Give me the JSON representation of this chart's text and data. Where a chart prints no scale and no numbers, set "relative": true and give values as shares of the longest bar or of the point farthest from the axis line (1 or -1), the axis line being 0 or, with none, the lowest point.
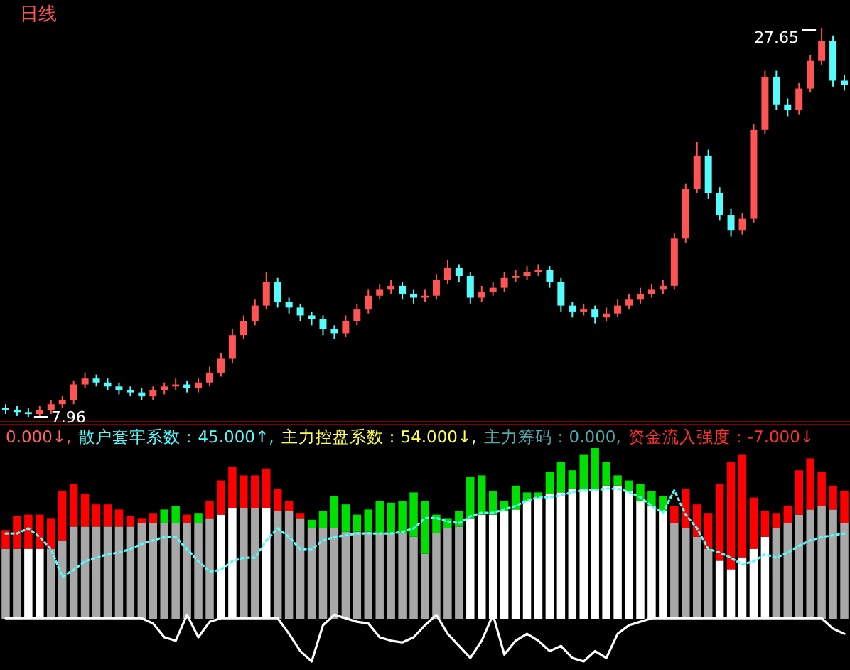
{
  "chart_data": [
    {
      "type": "candlestick",
      "title": "日线",
      "categories": [
        null,
        null,
        null,
        null,
        null,
        null,
        null,
        null,
        null,
        null,
        null,
        null,
        null,
        null,
        null,
        null,
        null,
        null,
        null,
        null,
        null,
        null,
        null,
        null,
        null,
        null,
        null,
        null,
        null,
        null,
        null,
        null,
        null,
        null,
        null,
        null,
        null,
        null,
        null,
        null,
        null,
        null,
        null,
        null,
        null,
        null,
        null,
        null,
        null,
        null,
        null,
        null,
        null,
        null,
        null,
        null,
        null,
        null,
        null,
        null,
        null,
        null,
        null,
        null,
        null,
        null,
        null,
        null,
        null,
        null,
        null,
        null,
        null,
        null,
        null
      ],
      "ohlc": [
        [
          8.4,
          8.6,
          8.1,
          8.3
        ],
        [
          8.3,
          8.5,
          8.0,
          8.2
        ],
        [
          8.2,
          8.4,
          7.96,
          8.1
        ],
        [
          8.1,
          8.5,
          8.0,
          8.3
        ],
        [
          8.3,
          8.8,
          8.1,
          8.6
        ],
        [
          8.6,
          9.0,
          8.4,
          8.8
        ],
        [
          8.8,
          9.8,
          8.6,
          9.6
        ],
        [
          9.6,
          10.2,
          9.4,
          9.9
        ],
        [
          9.9,
          10.1,
          9.5,
          9.7
        ],
        [
          9.7,
          9.9,
          9.3,
          9.5
        ],
        [
          9.5,
          9.7,
          9.1,
          9.3
        ],
        [
          9.3,
          9.5,
          9.0,
          9.2
        ],
        [
          9.2,
          9.4,
          8.8,
          9.0
        ],
        [
          9.0,
          9.5,
          8.8,
          9.3
        ],
        [
          9.3,
          9.7,
          9.1,
          9.5
        ],
        [
          9.5,
          9.9,
          9.3,
          9.6
        ],
        [
          9.6,
          9.8,
          9.2,
          9.4
        ],
        [
          9.4,
          9.9,
          9.2,
          9.7
        ],
        [
          9.7,
          10.5,
          9.5,
          10.2
        ],
        [
          10.2,
          11.2,
          10.0,
          10.9
        ],
        [
          10.9,
          12.4,
          10.7,
          12.1
        ],
        [
          12.1,
          13.1,
          11.9,
          12.8
        ],
        [
          12.8,
          13.9,
          12.6,
          13.6
        ],
        [
          13.6,
          15.3,
          13.4,
          14.8
        ],
        [
          14.8,
          15.0,
          13.5,
          13.8
        ],
        [
          13.8,
          14.0,
          13.2,
          13.5
        ],
        [
          13.5,
          13.7,
          12.8,
          13.1
        ],
        [
          13.1,
          13.3,
          12.6,
          12.9
        ],
        [
          12.9,
          13.1,
          12.1,
          12.4
        ],
        [
          12.4,
          12.6,
          11.9,
          12.2
        ],
        [
          12.2,
          13.1,
          12.0,
          12.8
        ],
        [
          12.8,
          13.7,
          12.6,
          13.4
        ],
        [
          13.4,
          14.4,
          13.2,
          14.1
        ],
        [
          14.1,
          14.7,
          13.9,
          14.4
        ],
        [
          14.4,
          14.9,
          14.2,
          14.6
        ],
        [
          14.6,
          14.8,
          13.9,
          14.2
        ],
        [
          14.2,
          14.4,
          13.7,
          14.0
        ],
        [
          14.0,
          14.4,
          13.8,
          14.1
        ],
        [
          14.1,
          15.2,
          13.9,
          14.9
        ],
        [
          14.9,
          15.9,
          14.7,
          15.5
        ],
        [
          15.5,
          15.7,
          14.8,
          15.1
        ],
        [
          15.1,
          15.3,
          13.7,
          14.0
        ],
        [
          14.0,
          14.6,
          13.8,
          14.3
        ],
        [
          14.3,
          14.8,
          14.1,
          14.5
        ],
        [
          14.5,
          15.3,
          14.3,
          15.0
        ],
        [
          15.0,
          15.4,
          14.8,
          15.1
        ],
        [
          15.1,
          15.6,
          14.9,
          15.3
        ],
        [
          15.3,
          15.7,
          15.1,
          15.4
        ],
        [
          15.4,
          15.6,
          14.5,
          14.8
        ],
        [
          14.8,
          15.0,
          13.3,
          13.6
        ],
        [
          13.6,
          13.8,
          13.0,
          13.3
        ],
        [
          13.3,
          13.7,
          13.1,
          13.4
        ],
        [
          13.4,
          13.6,
          12.7,
          13.0
        ],
        [
          13.0,
          13.5,
          12.8,
          13.2
        ],
        [
          13.2,
          13.9,
          13.0,
          13.6
        ],
        [
          13.6,
          14.2,
          13.4,
          13.9
        ],
        [
          13.9,
          14.5,
          13.7,
          14.2
        ],
        [
          14.2,
          14.7,
          14.0,
          14.4
        ],
        [
          14.4,
          14.9,
          14.2,
          14.6
        ],
        [
          14.6,
          17.3,
          14.4,
          17.0
        ],
        [
          17.0,
          19.8,
          16.8,
          19.5
        ],
        [
          19.5,
          21.9,
          19.3,
          21.2
        ],
        [
          21.2,
          21.5,
          19.0,
          19.3
        ],
        [
          19.3,
          19.6,
          17.9,
          18.2
        ],
        [
          18.2,
          18.5,
          17.1,
          17.4
        ],
        [
          17.4,
          18.3,
          17.2,
          18.0
        ],
        [
          18.0,
          22.8,
          17.8,
          22.5
        ],
        [
          22.5,
          25.5,
          22.3,
          25.2
        ],
        [
          25.2,
          25.5,
          23.5,
          23.8
        ],
        [
          23.8,
          24.1,
          23.2,
          23.5
        ],
        [
          23.5,
          24.9,
          23.3,
          24.6
        ],
        [
          24.6,
          26.3,
          24.4,
          26.0
        ],
        [
          26.0,
          27.65,
          25.8,
          27.0
        ],
        [
          27.0,
          27.3,
          24.7,
          25.0
        ],
        [
          25.0,
          25.3,
          24.5,
          24.8
        ]
      ],
      "colors": [
        "#54fcfc",
        "#54fcfc",
        "#54fcfc",
        "#ff5454",
        "#ff5454",
        "#ff5454",
        "#ff5454",
        "#ff5454",
        "#54fcfc",
        "#54fcfc",
        "#54fcfc",
        "#54fcfc",
        "#54fcfc",
        "#ff5454",
        "#ff5454",
        "#ff5454",
        "#54fcfc",
        "#ff5454",
        "#ff5454",
        "#ff5454",
        "#ff5454",
        "#ff5454",
        "#ff5454",
        "#ff5454",
        "#54fcfc",
        "#54fcfc",
        "#54fcfc",
        "#54fcfc",
        "#54fcfc",
        "#54fcfc",
        "#ff5454",
        "#ff5454",
        "#ff5454",
        "#ff5454",
        "#ff5454",
        "#54fcfc",
        "#54fcfc",
        "#ff5454",
        "#ff5454",
        "#ff5454",
        "#54fcfc",
        "#54fcfc",
        "#ff5454",
        "#ff5454",
        "#ff5454",
        "#ff5454",
        "#ff5454",
        "#ff5454",
        "#54fcfc",
        "#54fcfc",
        "#54fcfc",
        "#ff5454",
        "#54fcfc",
        "#ff5454",
        "#ff5454",
        "#ff5454",
        "#ff5454",
        "#ff5454",
        "#ff5454",
        "#ff5454",
        "#ff5454",
        "#ff5454",
        "#54fcfc",
        "#54fcfc",
        "#54fcfc",
        "#ff5454",
        "#ff5454",
        "#ff5454",
        "#54fcfc",
        "#54fcfc",
        "#ff5454",
        "#ff5454",
        "#ff5454",
        "#54fcfc",
        "#54fcfc"
      ],
      "annotations": [
        "7.96",
        "27.65"
      ]
    },
    {
      "type": "bar",
      "relative": true,
      "stacked": true,
      "categories": [
        null,
        null,
        null,
        null,
        null,
        null,
        null,
        null,
        null,
        null,
        null,
        null,
        null,
        null,
        null,
        null,
        null,
        null,
        null,
        null,
        null,
        null,
        null,
        null,
        null,
        null,
        null,
        null,
        null,
        null,
        null,
        null,
        null,
        null,
        null,
        null,
        null,
        null,
        null,
        null,
        null,
        null,
        null,
        null,
        null,
        null,
        null,
        null,
        null,
        null,
        null,
        null,
        null,
        null,
        null,
        null,
        null,
        null,
        null,
        null,
        null,
        null,
        null,
        null,
        null,
        null,
        null,
        null,
        null,
        null,
        null,
        null,
        null,
        null,
        null
      ],
      "annotations": [
        "0.000↓,",
        "散户套牢系数：45.000↑,",
        "主力控盘系数：54.000↓,",
        "主力筹码：0.000,",
        "资金流入强度：-7.000↓"
      ],
      "series": [
        {
          "values": [
            0.41,
            0.41,
            0.41,
            0.41,
            0.41,
            0.46,
            0.54,
            0.54,
            0.54,
            0.54,
            0.54,
            0.54,
            0.56,
            0.56,
            0.56,
            0.56,
            0.56,
            0.56,
            0.59,
            0.61,
            0.65,
            0.65,
            0.65,
            0.65,
            0.63,
            0.63,
            0.59,
            0.53,
            0.53,
            0.53,
            0.51,
            0.51,
            0.51,
            0.5,
            0.5,
            0.5,
            0.48,
            0.38,
            0.5,
            0.53,
            0.54,
            0.59,
            0.61,
            0.61,
            0.63,
            0.64,
            0.69,
            0.71,
            0.73,
            0.74,
            0.76,
            0.76,
            0.76,
            0.78,
            0.78,
            0.75,
            0.69,
            0.66,
            0.63,
            0.56,
            0.53,
            0.48,
            0.41,
            0.34,
            0.29,
            0.36,
            0.41,
            0.48,
            0.53,
            0.56,
            0.61,
            0.64,
            0.66,
            0.64,
            0.56
          ],
          "colors": [
            "#a8a8a8",
            "#a8a8a8",
            "#ffffff",
            "#ffffff",
            "#a8a8a8",
            "#a8a8a8",
            "#a8a8a8",
            "#a8a8a8",
            "#a8a8a8",
            "#a8a8a8",
            "#a8a8a8",
            "#a8a8a8",
            "#a8a8a8",
            "#a8a8a8",
            "#a8a8a8",
            "#a8a8a8",
            "#a8a8a8",
            "#a8a8a8",
            "#a8a8a8",
            "#ffffff",
            "#ffffff",
            "#a8a8a8",
            "#a8a8a8",
            "#ffffff",
            "#a8a8a8",
            "#a8a8a8",
            "#a8a8a8",
            "#a8a8a8",
            "#a8a8a8",
            "#a8a8a8",
            "#a8a8a8",
            "#a8a8a8",
            "#a8a8a8",
            "#a8a8a8",
            "#a8a8a8",
            "#a8a8a8",
            "#a8a8a8",
            "#a8a8a8",
            "#a8a8a8",
            "#a8a8a8",
            "#a8a8a8",
            "#ffffff",
            "#ffffff",
            "#ffffff",
            "#ffffff",
            "#ffffff",
            "#ffffff",
            "#ffffff",
            "#ffffff",
            "#ffffff",
            "#ffffff",
            "#ffffff",
            "#ffffff",
            "#ffffff",
            "#ffffff",
            "#ffffff",
            "#ffffff",
            "#ffffff",
            "#ffffff",
            "#a8a8a8",
            "#a8a8a8",
            "#a8a8a8",
            "#a8a8a8",
            "#ffffff",
            "#ffffff",
            "#ffffff",
            "#ffffff",
            "#ffffff",
            "#a8a8a8",
            "#a8a8a8",
            "#a8a8a8",
            "#a8a8a8",
            "#a8a8a8",
            "#a8a8a8",
            "#a8a8a8"
          ]
        },
        {
          "values": [
            0.11,
            0.19,
            0.2,
            0.2,
            0.18,
            0.29,
            0.25,
            0.19,
            0.13,
            0.13,
            0.1,
            0.06,
            0.03,
            0.06,
            0.08,
            0.1,
            0.05,
            0.06,
            0.1,
            0.2,
            0.24,
            0.19,
            0.19,
            0.23,
            0.13,
            0.06,
            0.03,
            0.05,
            0.1,
            0.19,
            0.16,
            0.1,
            0.13,
            0.19,
            0.18,
            0.19,
            0.26,
            0.31,
            0.11,
            0.06,
            0.09,
            0.24,
            0.23,
            0.14,
            0.06,
            0.14,
            0.05,
            0.03,
            0.13,
            0.18,
            0.11,
            0.2,
            0.24,
            0.14,
            0.06,
            0.06,
            0.1,
            0.09,
            0.09,
            0.1,
            0.23,
            0.19,
            0.21,
            0.45,
            0.63,
            0.6,
            0.3,
            0.15,
            0.09,
            0.1,
            0.26,
            0.3,
            0.2,
            0.14,
            0.19
          ],
          "colors": [
            "#ff0000",
            "#ff0000",
            "#ff0000",
            "#ff0000",
            "#ff0000",
            "#ff0000",
            "#ff0000",
            "#ff0000",
            "#ff0000",
            "#ff0000",
            "#ff0000",
            "#ff0000",
            "#ff0000",
            "#ff0000",
            "#00e000",
            "#00e000",
            "#ff0000",
            "#00e000",
            "#ff0000",
            "#ff0000",
            "#ff0000",
            "#ff0000",
            "#ff0000",
            "#ff0000",
            "#ff0000",
            "#ff0000",
            "#ff0000",
            "#00e000",
            "#00e000",
            "#00e000",
            "#00e000",
            "#00e000",
            "#00e000",
            "#00e000",
            "#00e000",
            "#00e000",
            "#00e000",
            "#00e000",
            "#00e000",
            "#00e000",
            "#00e000",
            "#00e000",
            "#00e000",
            "#00e000",
            "#00e000",
            "#00e000",
            "#00e000",
            "#00e000",
            "#00e000",
            "#00e000",
            "#00e000",
            "#00e000",
            "#00e000",
            "#00e000",
            "#00e000",
            "#00e000",
            "#00e000",
            "#00e000",
            "#00e000",
            "#ff0000",
            "#ff0000",
            "#ff0000",
            "#ff0000",
            "#ff0000",
            "#ff0000",
            "#ff0000",
            "#ff0000",
            "#ff0000",
            "#ff0000",
            "#ff0000",
            "#ff0000",
            "#ff0000",
            "#ff0000",
            "#ff0000",
            "#ff0000"
          ]
        }
      ]
    },
    {
      "type": "line",
      "relative": true,
      "categories": [
        null,
        null,
        null,
        null,
        null,
        null,
        null,
        null,
        null,
        null,
        null,
        null,
        null,
        null,
        null,
        null,
        null,
        null,
        null,
        null,
        null,
        null,
        null,
        null,
        null,
        null,
        null,
        null,
        null,
        null,
        null,
        null,
        null,
        null,
        null,
        null,
        null,
        null,
        null,
        null,
        null,
        null,
        null,
        null,
        null,
        null,
        null,
        null,
        null,
        null,
        null,
        null,
        null,
        null,
        null,
        null,
        null,
        null,
        null,
        null,
        null,
        null,
        null,
        null,
        null,
        null,
        null,
        null,
        null,
        null,
        null,
        null,
        null,
        null,
        null
      ],
      "series": [
        {
          "color": "#54fcfc",
          "line_style": "dotted",
          "values": [
            0.74,
            0.74,
            0.77,
            0.72,
            0.65,
            0.49,
            0.53,
            0.58,
            0.6,
            0.62,
            0.63,
            0.65,
            0.68,
            0.7,
            0.72,
            0.72,
            0.65,
            0.58,
            0.52,
            0.53,
            0.58,
            0.6,
            0.6,
            0.7,
            0.77,
            0.72,
            0.65,
            0.65,
            0.7,
            0.72,
            0.73,
            0.74,
            0.74,
            0.74,
            0.74,
            0.75,
            0.77,
            0.83,
            0.83,
            0.81,
            0.8,
            0.84,
            0.86,
            0.86,
            0.88,
            0.9,
            0.93,
            0.95,
            0.95,
            0.96,
            0.98,
            0.99,
            0.99,
            1,
            1,
            0.98,
            0.95,
            0.9,
            0.86,
            0.99,
            0.85,
            0.77,
            0.65,
            0.63,
            0.6,
            0.56,
            0.58,
            0.62,
            0.6,
            0.63,
            0.67,
            0.7,
            0.72,
            0.73,
            0.74
          ]
        },
        {
          "color": "#ffffff",
          "values": [
            0.25,
            0.25,
            0.25,
            0.25,
            0.25,
            0.25,
            0.25,
            0.25,
            0.25,
            0.25,
            0.25,
            0.25,
            0.25,
            0.22,
            0.14,
            0.12,
            0.27,
            0.14,
            0.23,
            0.25,
            0.25,
            0.25,
            0.25,
            0.25,
            0.25,
            0.16,
            0.06,
            0,
            0.21,
            0.27,
            0.25,
            0.23,
            0.22,
            0.14,
            0.12,
            0.11,
            0.14,
            0.21,
            0.27,
            0.16,
            0.09,
            0.02,
            0.12,
            0.27,
            0.04,
            0.12,
            0.16,
            0.12,
            0.06,
            0.09,
            0.02,
            0,
            0.06,
            0.02,
            0.16,
            0.21,
            0.23,
            0.25,
            0.25,
            0.25,
            0.25,
            0.25,
            0.25,
            0.25,
            0.25,
            0.25,
            0.25,
            0.25,
            0.25,
            0.25,
            0.25,
            0.25,
            0.25,
            0.19,
            0.16
          ]
        }
      ]
    }
  ]
}
